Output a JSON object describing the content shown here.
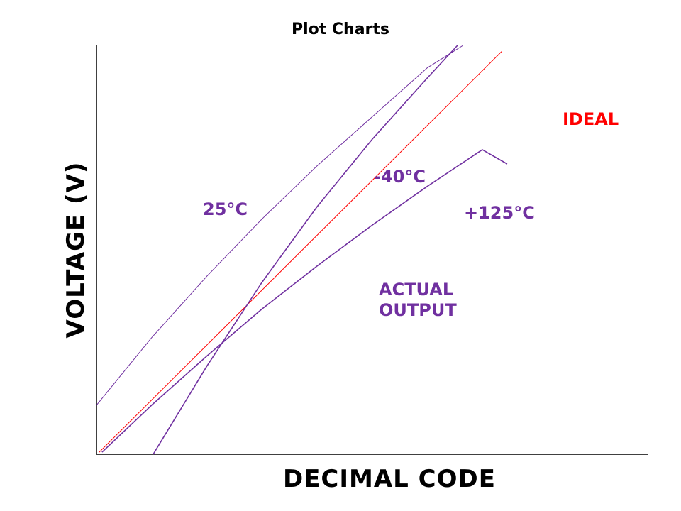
{
  "chart_data": {
    "type": "line",
    "title": "Plot Charts",
    "xlabel": "DECIMAL CODE",
    "ylabel": "VOLTAGE (V)",
    "xlim": [
      0,
      100
    ],
    "ylim": [
      0,
      100
    ],
    "grid": false,
    "x_ticks_labeled": false,
    "y_ticks_labeled": false,
    "series": [
      {
        "name": "IDEAL",
        "color": "#ff0000",
        "x": [
          0.5,
          73.5
        ],
        "y": [
          0.5,
          98.5
        ]
      },
      {
        "name": "25°C",
        "color": "#7030a0",
        "x": [
          0,
          10,
          20,
          30,
          40,
          50,
          60,
          66.5
        ],
        "y": [
          12,
          28.5,
          43.5,
          57.5,
          70.5,
          82.5,
          94.5,
          100
        ]
      },
      {
        "name": "-40°C",
        "color": "#7030a0",
        "x": [
          10.3,
          20,
          30,
          40,
          50,
          60,
          65.5
        ],
        "y": [
          0,
          21.5,
          42,
          60.5,
          77,
          92,
          100
        ]
      },
      {
        "name": "+125°C",
        "color": "#7030a0",
        "x": [
          1,
          10,
          20,
          30,
          40,
          50,
          60,
          70,
          74.5
        ],
        "y": [
          0.5,
          12,
          24,
          35.5,
          46,
          56,
          65.5,
          74.5,
          71
        ]
      }
    ],
    "annotations": [
      {
        "text": "IDEAL",
        "color": "#ff0000"
      },
      {
        "text": "25°C",
        "color": "#7030a0"
      },
      {
        "text": "-40°C",
        "color": "#7030a0"
      },
      {
        "text": "+125°C",
        "color": "#7030a0"
      },
      {
        "text": "ACTUAL",
        "color": "#7030a0"
      },
      {
        "text": "OUTPUT",
        "color": "#7030a0"
      }
    ]
  }
}
